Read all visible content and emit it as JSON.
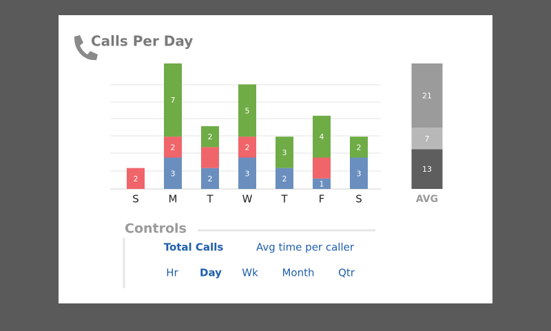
{
  "title": "Calls Per Day",
  "chart_data": [
    {
      "type": "bar",
      "stacked": true,
      "categories": [
        "S",
        "M",
        "T",
        "W",
        "T",
        "F",
        "S"
      ],
      "series": [
        {
          "color": "#6a8fbf",
          "values": [
            null,
            3,
            2,
            3,
            2,
            1,
            3
          ],
          "value_labels": [
            null,
            "3",
            "2",
            "3",
            "2",
            "1",
            "3"
          ]
        },
        {
          "color": "#f0656a",
          "values": [
            2,
            2,
            2,
            2,
            null,
            2,
            null
          ],
          "value_labels": [
            "2",
            "2",
            null,
            "2",
            null,
            null,
            null
          ]
        },
        {
          "color": "#6fac46",
          "values": [
            null,
            7,
            2,
            5,
            3,
            4,
            2
          ],
          "value_labels": [
            null,
            "7",
            "2",
            "5",
            "3",
            "4",
            "2"
          ]
        }
      ],
      "grid": true
    },
    {
      "type": "bar",
      "stacked": true,
      "categories": [
        "AVG"
      ],
      "series": [
        {
          "color": "#5e5e5e",
          "values": [
            13
          ]
        },
        {
          "color": "#b8b8b8",
          "values": [
            7
          ]
        },
        {
          "color": "#9b9b9b",
          "values": [
            21
          ]
        }
      ]
    }
  ],
  "controls": {
    "title": "Controls",
    "metrics": [
      {
        "label": "Total Calls",
        "selected": true
      },
      {
        "label": "Avg time per caller",
        "selected": false
      }
    ],
    "periods": [
      {
        "label": "Hr",
        "selected": false
      },
      {
        "label": "Day",
        "selected": true
      },
      {
        "label": "Wk",
        "selected": false
      },
      {
        "label": "Month",
        "selected": false
      },
      {
        "label": "Qtr",
        "selected": false
      }
    ]
  }
}
